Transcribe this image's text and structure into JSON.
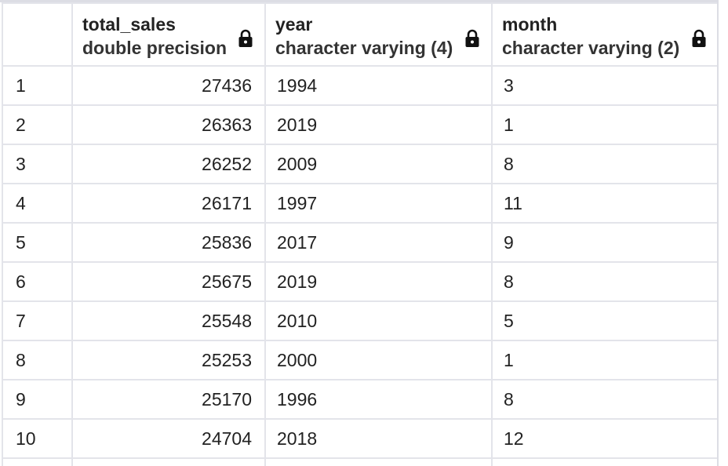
{
  "columns": {
    "total_sales": {
      "name": "total_sales",
      "type": "double precision"
    },
    "year": {
      "name": "year",
      "type": "character varying (4)"
    },
    "month": {
      "name": "month",
      "type": "character varying (2)"
    }
  },
  "icons": {
    "lock": "lock-icon"
  },
  "rows": [
    {
      "n": "1",
      "total_sales": "27436",
      "year": "1994",
      "month": "3"
    },
    {
      "n": "2",
      "total_sales": "26363",
      "year": "2019",
      "month": "1"
    },
    {
      "n": "3",
      "total_sales": "26252",
      "year": "2009",
      "month": "8"
    },
    {
      "n": "4",
      "total_sales": "26171",
      "year": "1997",
      "month": "11"
    },
    {
      "n": "5",
      "total_sales": "25836",
      "year": "2017",
      "month": "9"
    },
    {
      "n": "6",
      "total_sales": "25675",
      "year": "2019",
      "month": "8"
    },
    {
      "n": "7",
      "total_sales": "25548",
      "year": "2010",
      "month": "5"
    },
    {
      "n": "8",
      "total_sales": "25253",
      "year": "2000",
      "month": "1"
    },
    {
      "n": "9",
      "total_sales": "25170",
      "year": "1996",
      "month": "8"
    },
    {
      "n": "10",
      "total_sales": "24704",
      "year": "2018",
      "month": "12"
    }
  ]
}
